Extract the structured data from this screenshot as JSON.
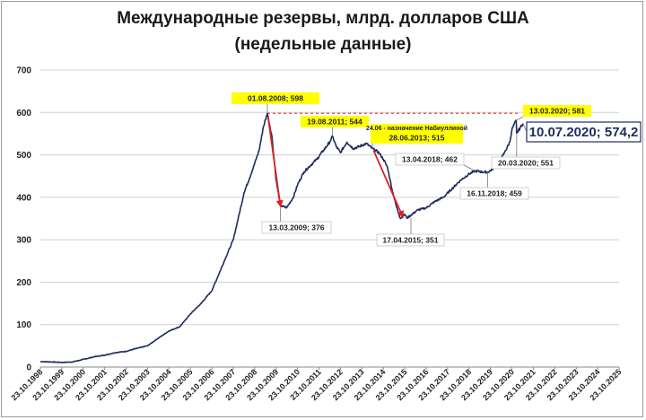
{
  "title_line1": "Международные резервы, млрд. долларов США",
  "title_line2": "(недельные данные)",
  "colors": {
    "line": "#1f2d5c",
    "arrow": "#e02020",
    "dashed": "#e02020",
    "highlight": "#ffff00",
    "grid": "#d0d0d0"
  },
  "chart_data": {
    "type": "line",
    "title": "Международные резервы, млрд. долларов США (недельные данные)",
    "ylim": [
      0,
      700
    ],
    "yticks": [
      0,
      100,
      200,
      300,
      400,
      500,
      600,
      700
    ],
    "grid": "horizontal",
    "xticks": [
      "23.10.1998",
      "23.10.1999",
      "23.10.2000",
      "23.10.2001",
      "23.10.2002",
      "23.10.2003",
      "23.10.2004",
      "23.10.2005",
      "23.10.2006",
      "23.10.2007",
      "23.10.2008",
      "23.10.2009",
      "23.10.2010",
      "23.10.2011",
      "23.10.2012",
      "23.10.2013",
      "23.10.2014",
      "23.10.2015",
      "23.10.2016",
      "23.10.2017",
      "23.10.2018",
      "23.10.2019",
      "23.10.2020",
      "23.10.2021",
      "23.10.2022",
      "23.10.2023",
      "23.10.2024",
      "23.10.2025"
    ],
    "series": [
      {
        "x": [
          1998.0,
          1998.5,
          1999.0,
          1999.5,
          2000.0,
          2000.5,
          2001.0,
          2001.5,
          2002.0,
          2002.5,
          2003.0,
          2003.5,
          2004.0,
          2004.5,
          2005.0,
          2005.5,
          2006.0,
          2006.5,
          2007.0,
          2007.5,
          2007.9,
          2008.2,
          2008.4,
          2008.59,
          2008.8,
          2009.0,
          2009.2,
          2009.5,
          2009.8,
          2010.0,
          2010.3,
          2010.6,
          2010.9,
          2011.2,
          2011.5,
          2011.63,
          2011.8,
          2012.0,
          2012.3,
          2012.6,
          2012.9,
          2013.2,
          2013.49,
          2013.8,
          2014.0,
          2014.2,
          2014.4,
          2014.6,
          2014.8,
          2015.0,
          2015.1,
          2015.29,
          2015.6,
          2016.0,
          2016.4,
          2016.8,
          2017.2,
          2017.6,
          2018.0,
          2018.28,
          2018.6,
          2018.87,
          2019.2,
          2019.6,
          2019.9,
          2020.0,
          2020.2,
          2020.22,
          2020.4,
          2020.52
        ],
        "y": [
          13,
          12,
          11,
          12,
          18,
          24,
          28,
          34,
          37,
          44,
          50,
          68,
          85,
          95,
          125,
          150,
          180,
          240,
          300,
          410,
          465,
          510,
          565,
          598,
          545,
          440,
          380,
          376,
          400,
          430,
          460,
          475,
          490,
          510,
          530,
          544,
          520,
          505,
          530,
          515,
          520,
          527,
          515,
          505,
          490,
          470,
          420,
          380,
          350,
          360,
          351,
          358,
          370,
          375,
          390,
          400,
          420,
          440,
          455,
          462,
          460,
          459,
          470,
          500,
          530,
          560,
          581,
          551,
          565,
          574.2
        ]
      }
    ],
    "annotations": [
      {
        "text": "01.08.2008; 598",
        "highlight": true
      },
      {
        "text": "13.03.2009; 376",
        "highlight": false
      },
      {
        "text": "19.08.2011; 544",
        "highlight": true
      },
      {
        "text": "24.06 - назначение Набиуллиной",
        "highlight": true
      },
      {
        "text": "28.06.2013; 515",
        "highlight": true
      },
      {
        "text": "17.04.2015; 351",
        "highlight": false
      },
      {
        "text": "13.04.2018; 462",
        "highlight": false
      },
      {
        "text": "16.11.2018; 459",
        "highlight": false
      },
      {
        "text": "13.03.2020; 581",
        "highlight": true
      },
      {
        "text": "20.03.2020; 551",
        "highlight": false
      },
      {
        "text": "10.07.2020; 574,2",
        "highlight": false
      }
    ]
  }
}
